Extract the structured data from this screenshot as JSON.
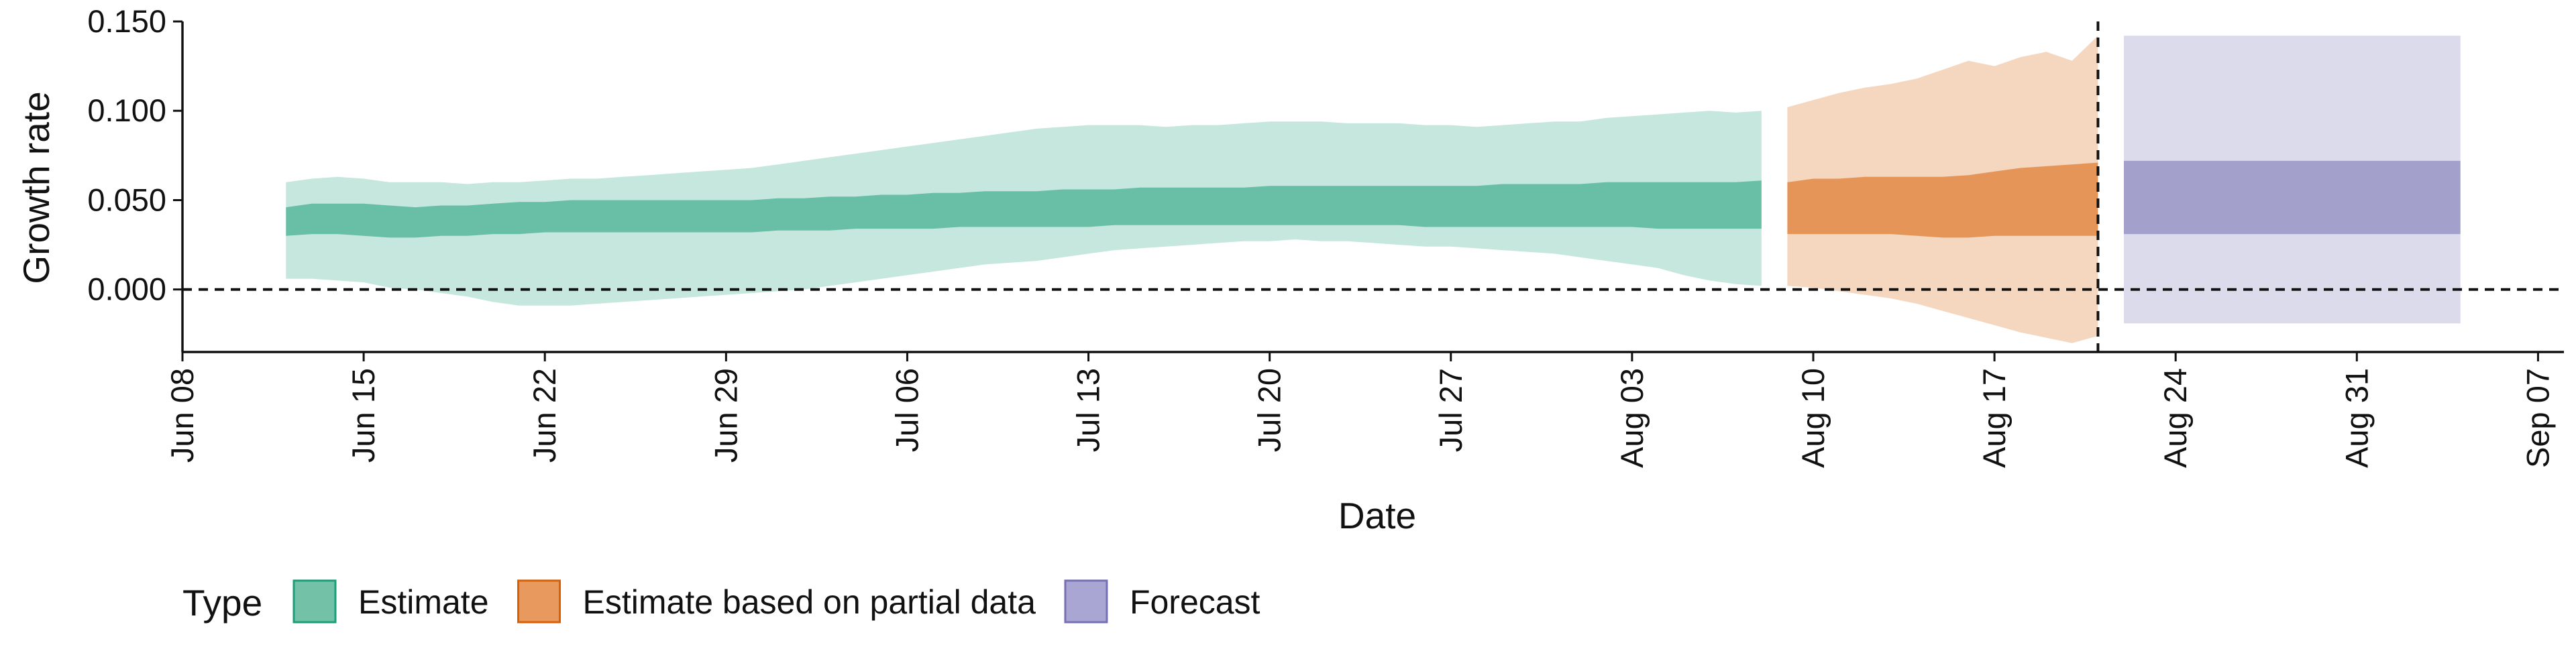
{
  "chart_data": {
    "type": "area",
    "xlabel": "Date",
    "ylabel": "Growth rate",
    "ylim": [
      -0.035,
      0.15
    ],
    "xlim": [
      "2020-06-08",
      "2020-09-08"
    ],
    "y_ticks": [
      "0.000",
      "0.050",
      "0.100",
      "0.150"
    ],
    "y_tick_values": [
      0.0,
      0.05,
      0.1,
      0.15
    ],
    "x_ticks": [
      "Jun 08",
      "Jun 15",
      "Jun 22",
      "Jun 29",
      "Jul 06",
      "Jul 13",
      "Jul 20",
      "Jul 27",
      "Aug 03",
      "Aug 10",
      "Aug 17",
      "Aug 24",
      "Aug 31",
      "Sep 07"
    ],
    "x_tick_dates": [
      "2020-06-08",
      "2020-06-15",
      "2020-06-22",
      "2020-06-29",
      "2020-07-06",
      "2020-07-13",
      "2020-07-20",
      "2020-07-27",
      "2020-08-03",
      "2020-08-10",
      "2020-08-17",
      "2020-08-24",
      "2020-08-31",
      "2020-09-07"
    ],
    "hline_y": 0.0,
    "vline_date": "2020-08-21",
    "legend": {
      "title": "Type",
      "position": "bottom"
    },
    "series": [
      {
        "name": "Estimate",
        "color": "#1b9e77",
        "x": [
          "2020-06-12",
          "2020-06-13",
          "2020-06-14",
          "2020-06-15",
          "2020-06-16",
          "2020-06-17",
          "2020-06-18",
          "2020-06-19",
          "2020-06-20",
          "2020-06-21",
          "2020-06-22",
          "2020-06-23",
          "2020-06-24",
          "2020-06-25",
          "2020-06-26",
          "2020-06-27",
          "2020-06-28",
          "2020-06-29",
          "2020-06-30",
          "2020-07-01",
          "2020-07-02",
          "2020-07-03",
          "2020-07-04",
          "2020-07-05",
          "2020-07-06",
          "2020-07-07",
          "2020-07-08",
          "2020-07-09",
          "2020-07-10",
          "2020-07-11",
          "2020-07-12",
          "2020-07-13",
          "2020-07-14",
          "2020-07-15",
          "2020-07-16",
          "2020-07-17",
          "2020-07-18",
          "2020-07-19",
          "2020-07-20",
          "2020-07-21",
          "2020-07-22",
          "2020-07-23",
          "2020-07-24",
          "2020-07-25",
          "2020-07-26",
          "2020-07-27",
          "2020-07-28",
          "2020-07-29",
          "2020-07-30",
          "2020-07-31",
          "2020-08-01",
          "2020-08-02",
          "2020-08-03",
          "2020-08-04",
          "2020-08-05",
          "2020-08-06",
          "2020-08-07",
          "2020-08-08"
        ],
        "lower90": [
          0.006,
          0.006,
          0.005,
          0.004,
          0.001,
          0.0,
          -0.002,
          -0.004,
          -0.007,
          -0.009,
          -0.009,
          -0.009,
          -0.008,
          -0.007,
          -0.006,
          -0.005,
          -0.004,
          -0.003,
          -0.002,
          -0.001,
          0.0,
          0.002,
          0.004,
          0.006,
          0.008,
          0.01,
          0.012,
          0.014,
          0.015,
          0.016,
          0.018,
          0.02,
          0.022,
          0.023,
          0.024,
          0.025,
          0.026,
          0.027,
          0.027,
          0.028,
          0.027,
          0.027,
          0.026,
          0.025,
          0.024,
          0.024,
          0.023,
          0.022,
          0.021,
          0.02,
          0.018,
          0.016,
          0.014,
          0.012,
          0.008,
          0.005,
          0.003,
          0.002
        ],
        "lower50": [
          0.03,
          0.031,
          0.031,
          0.03,
          0.029,
          0.029,
          0.03,
          0.03,
          0.031,
          0.031,
          0.032,
          0.032,
          0.032,
          0.032,
          0.032,
          0.032,
          0.032,
          0.032,
          0.032,
          0.033,
          0.033,
          0.033,
          0.034,
          0.034,
          0.034,
          0.034,
          0.035,
          0.035,
          0.035,
          0.035,
          0.035,
          0.035,
          0.036,
          0.036,
          0.036,
          0.036,
          0.036,
          0.036,
          0.036,
          0.036,
          0.036,
          0.036,
          0.036,
          0.036,
          0.035,
          0.035,
          0.035,
          0.035,
          0.035,
          0.035,
          0.035,
          0.035,
          0.035,
          0.034,
          0.034,
          0.034,
          0.034,
          0.034
        ],
        "upper50": [
          0.046,
          0.048,
          0.048,
          0.048,
          0.047,
          0.046,
          0.047,
          0.047,
          0.048,
          0.049,
          0.049,
          0.05,
          0.05,
          0.05,
          0.05,
          0.05,
          0.05,
          0.05,
          0.05,
          0.051,
          0.051,
          0.052,
          0.052,
          0.053,
          0.053,
          0.054,
          0.054,
          0.055,
          0.055,
          0.055,
          0.056,
          0.056,
          0.056,
          0.057,
          0.057,
          0.057,
          0.057,
          0.057,
          0.058,
          0.058,
          0.058,
          0.058,
          0.058,
          0.058,
          0.058,
          0.058,
          0.058,
          0.059,
          0.059,
          0.059,
          0.059,
          0.06,
          0.06,
          0.06,
          0.06,
          0.06,
          0.06,
          0.061
        ],
        "upper90": [
          0.06,
          0.062,
          0.063,
          0.062,
          0.06,
          0.06,
          0.06,
          0.059,
          0.06,
          0.06,
          0.061,
          0.062,
          0.062,
          0.063,
          0.064,
          0.065,
          0.066,
          0.067,
          0.068,
          0.07,
          0.072,
          0.074,
          0.076,
          0.078,
          0.08,
          0.082,
          0.084,
          0.086,
          0.088,
          0.09,
          0.091,
          0.092,
          0.092,
          0.092,
          0.091,
          0.092,
          0.092,
          0.093,
          0.094,
          0.094,
          0.094,
          0.093,
          0.093,
          0.093,
          0.092,
          0.092,
          0.091,
          0.092,
          0.093,
          0.094,
          0.094,
          0.096,
          0.097,
          0.098,
          0.099,
          0.1,
          0.099,
          0.1
        ]
      },
      {
        "name": "Estimate based on partial data",
        "color": "#d95f02",
        "x": [
          "2020-08-09",
          "2020-08-10",
          "2020-08-11",
          "2020-08-12",
          "2020-08-13",
          "2020-08-14",
          "2020-08-15",
          "2020-08-16",
          "2020-08-17",
          "2020-08-18",
          "2020-08-19",
          "2020-08-20",
          "2020-08-21"
        ],
        "lower90": [
          0.002,
          0.001,
          -0.001,
          -0.003,
          -0.005,
          -0.008,
          -0.012,
          -0.016,
          -0.02,
          -0.024,
          -0.027,
          -0.03,
          -0.026
        ],
        "lower50": [
          0.031,
          0.031,
          0.031,
          0.031,
          0.031,
          0.03,
          0.029,
          0.029,
          0.03,
          0.03,
          0.03,
          0.03,
          0.03
        ],
        "upper50": [
          0.06,
          0.062,
          0.062,
          0.063,
          0.063,
          0.063,
          0.063,
          0.064,
          0.066,
          0.068,
          0.069,
          0.07,
          0.071
        ],
        "upper90": [
          0.102,
          0.106,
          0.11,
          0.113,
          0.115,
          0.118,
          0.123,
          0.128,
          0.125,
          0.13,
          0.133,
          0.128,
          0.142
        ]
      },
      {
        "name": "Forecast",
        "color": "#7570b3",
        "x": [
          "2020-08-22",
          "2020-09-04"
        ],
        "lower90": [
          -0.019,
          -0.019
        ],
        "lower50": [
          0.031,
          0.031
        ],
        "upper50": [
          0.072,
          0.072
        ],
        "upper90": [
          0.142,
          0.142
        ]
      }
    ]
  },
  "legend_items": [
    {
      "label": "Estimate",
      "fill": "#73c2a7",
      "stroke": "#1b9e77"
    },
    {
      "label": "Estimate based on partial data",
      "fill": "#e89a5e",
      "stroke": "#d95f02"
    },
    {
      "label": "Forecast",
      "fill": "#a9a6d3",
      "stroke": "#7570b3"
    }
  ]
}
